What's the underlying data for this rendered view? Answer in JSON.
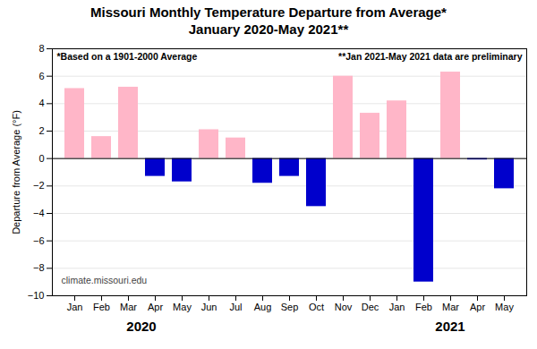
{
  "chart_data": {
    "type": "bar",
    "title": "Missouri Monthly Temperature Departure from Average*\nJanuary 2020-May 2021**",
    "ylabel": "Departure from Average (°F)",
    "categories": [
      "Jan",
      "Feb",
      "Mar",
      "Apr",
      "May",
      "Jun",
      "Jul",
      "Aug",
      "Sep",
      "Oct",
      "Nov",
      "Dec",
      "Jan",
      "Feb",
      "Mar",
      "Apr",
      "May"
    ],
    "values": [
      5.1,
      1.6,
      5.2,
      -1.3,
      -1.7,
      2.1,
      1.5,
      -1.8,
      -1.3,
      -3.5,
      6.0,
      3.3,
      4.2,
      -9.0,
      6.3,
      -0.1,
      -2.2
    ],
    "colors": [
      "#FFB6C8",
      "#FFB6C8",
      "#FFB6C8",
      "#0000CC",
      "#0000CC",
      "#FFB6C8",
      "#FFB6C8",
      "#0000CC",
      "#0000CC",
      "#0000CC",
      "#FFB6C8",
      "#FFB6C8",
      "#FFB6C8",
      "#0000CC",
      "#FFB6C8",
      "#0000CC",
      "#0000CC"
    ],
    "ylim": [
      -10.0,
      8.0
    ],
    "yticks": [
      -10.0,
      -8.0,
      -6.0,
      -4.0,
      -2.0,
      0.0,
      2.0,
      4.0,
      6.0,
      8.0
    ],
    "grid": true,
    "annotations": [
      {
        "text": "*Based on a 1901-2000 Average",
        "position": "top-left"
      },
      {
        "text": "**Jan 2021-May 2021 data are preliminary",
        "position": "top-right"
      },
      {
        "text": "climate.missouri.edu",
        "position": "bottom-left"
      },
      {
        "text": "2020",
        "span": [
          0,
          5
        ]
      },
      {
        "text": "2021",
        "span": [
          12,
          16
        ]
      }
    ]
  }
}
